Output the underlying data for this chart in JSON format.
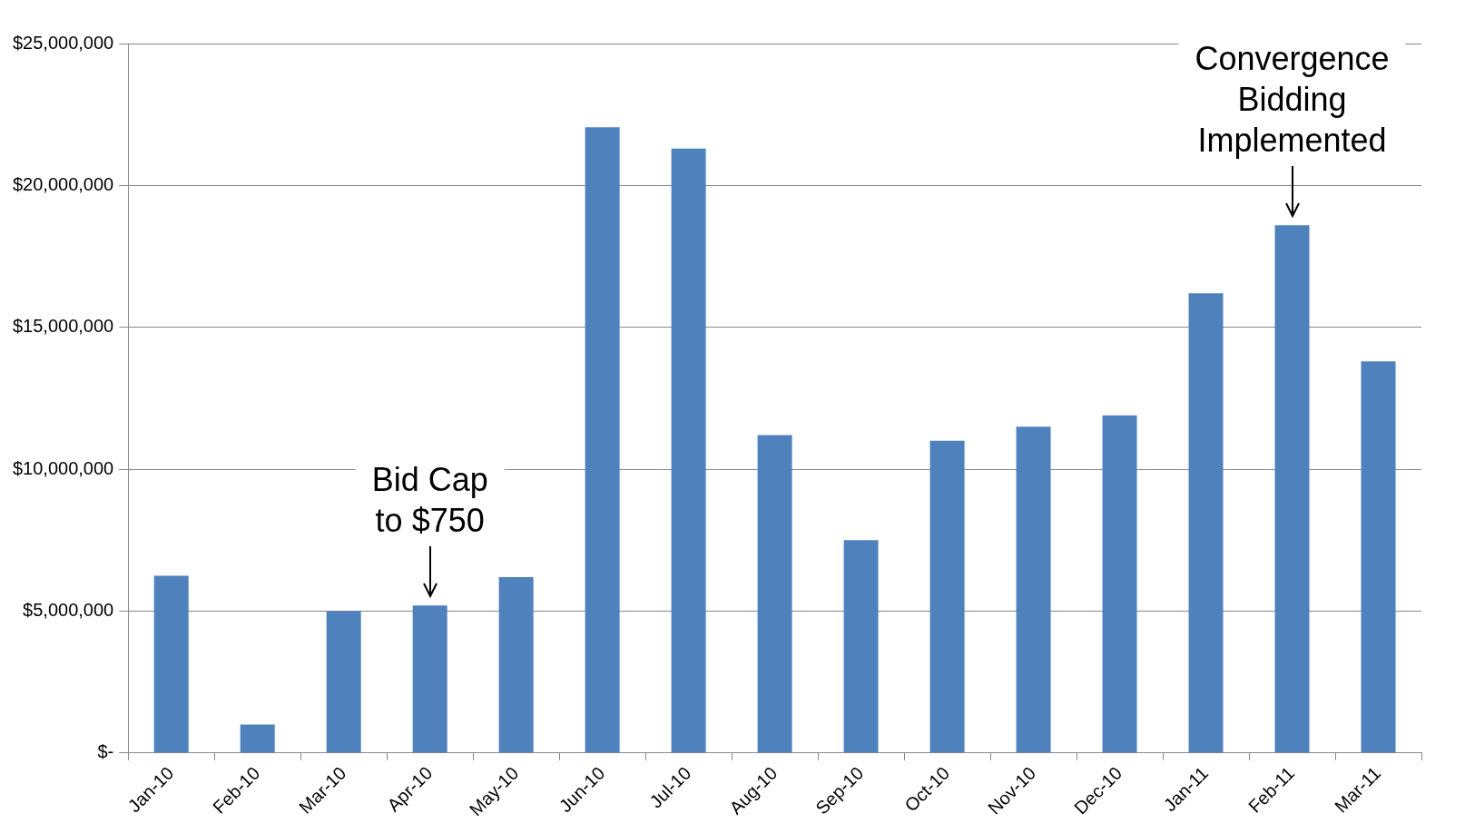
{
  "chart_data": {
    "type": "bar",
    "categories": [
      "Jan-10",
      "Feb-10",
      "Mar-10",
      "Apr-10",
      "May-10",
      "Jun-10",
      "Jul-10",
      "Aug-10",
      "Sep-10",
      "Oct-10",
      "Nov-10",
      "Dec-10",
      "Jan-11",
      "Feb-11",
      "Mar-11"
    ],
    "values": [
      6250000,
      1000000,
      5000000,
      5200000,
      6200000,
      22050000,
      21300000,
      11200000,
      7500000,
      11000000,
      11500000,
      11900000,
      16200000,
      18600000,
      13800000
    ],
    "color": "#4f81bd",
    "ylim": [
      0,
      25000000
    ],
    "yticks": [
      {
        "value": 0,
        "label": "$-"
      },
      {
        "value": 5000000,
        "label": "$5,000,000"
      },
      {
        "value": 10000000,
        "label": "$10,000,000"
      },
      {
        "value": 15000000,
        "label": "$15,000,000"
      },
      {
        "value": 20000000,
        "label": "$20,000,000"
      },
      {
        "value": 25000000,
        "label": "$25,000,000"
      }
    ],
    "grid": "y",
    "legend": false,
    "annotations": [
      {
        "text": "Bid Cap to $750",
        "x": "Apr-10",
        "y": 5200000
      },
      {
        "text": "Convergence Bidding Implemented",
        "x": "Feb-11",
        "y": 18600000
      }
    ]
  }
}
